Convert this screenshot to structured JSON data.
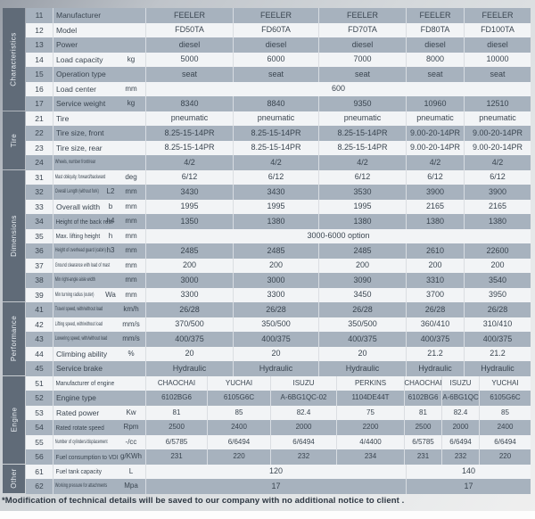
{
  "footer": {
    "note": "*Modification of technical details will be saved to our company with no additional notice to client ."
  },
  "colors": {
    "row_gray": "#a7b2be",
    "row_light": "#f2f4f6",
    "section_strip": "#606b78",
    "text": "#3a4550"
  },
  "table": {
    "models": [
      "FD50TA",
      "FD60TA",
      "FD70TA",
      "FD80TA",
      "FD100TA"
    ],
    "sections": [
      {
        "name": "Characteristics",
        "rows": [
          {
            "no": "11",
            "label": "Manufacturer",
            "sym": "",
            "unit": "",
            "type": "regular",
            "values": [
              "FEELER",
              "FEELER",
              "FEELER",
              "FEELER",
              "FEELER"
            ]
          },
          {
            "no": "12",
            "label": "Model",
            "sym": "",
            "unit": "",
            "type": "regular",
            "values": [
              "FD50TA",
              "FD60TA",
              "FD70TA",
              "FD80TA",
              "FD100TA"
            ]
          },
          {
            "no": "13",
            "label": "Power",
            "sym": "",
            "unit": "",
            "type": "regular",
            "values": [
              "diesel",
              "diesel",
              "diesel",
              "diesel",
              "diesel"
            ]
          },
          {
            "no": "14",
            "label": "Load capacity",
            "sym": "",
            "unit": "kg",
            "type": "regular",
            "values": [
              "5000",
              "6000",
              "7000",
              "8000",
              "10000"
            ]
          },
          {
            "no": "15",
            "label": "Operation type",
            "sym": "",
            "unit": "",
            "type": "regular",
            "values": [
              "seat",
              "seat",
              "seat",
              "seat",
              "seat"
            ]
          },
          {
            "no": "16",
            "label": "Load center",
            "sym": "",
            "unit": "mm",
            "type": "span",
            "values": [
              "600"
            ]
          },
          {
            "no": "17",
            "label": "Service weight",
            "sym": "",
            "unit": "kg",
            "type": "regular",
            "values": [
              "8340",
              "8840",
              "9350",
              "10960",
              "12510"
            ]
          }
        ]
      },
      {
        "name": "Tire",
        "rows": [
          {
            "no": "21",
            "label": "Tire",
            "sym": "",
            "unit": "",
            "type": "regular",
            "values": [
              "pneumatic",
              "pneumatic",
              "pneumatic",
              "pneumatic",
              "pneumatic"
            ]
          },
          {
            "no": "22",
            "label": "Tire size, front",
            "sym": "",
            "unit": "",
            "type": "regular",
            "values": [
              "8.25-15-14PR",
              "8.25-15-14PR",
              "8.25-15-14PR",
              "9.00-20-14PR",
              "9.00-20-14PR"
            ]
          },
          {
            "no": "23",
            "label": "Tire size, rear",
            "sym": "",
            "unit": "",
            "type": "regular",
            "values": [
              "8.25-15-14PR",
              "8.25-15-14PR",
              "8.25-15-14PR",
              "9.00-20-14PR",
              "9.00-20-14PR"
            ]
          },
          {
            "no": "24",
            "label": "Wheels, number front/rear",
            "sym": "",
            "unit": "",
            "type": "regular",
            "values": [
              "4/2",
              "4/2",
              "4/2",
              "4/2",
              "4/2"
            ]
          }
        ]
      },
      {
        "name": "Dimensions",
        "rows": [
          {
            "no": "31",
            "label": "Mast obliquity, forward/backward",
            "sym": "",
            "unit": "deg",
            "type": "regular",
            "values": [
              "6/12",
              "6/12",
              "6/12",
              "6/12",
              "6/12"
            ]
          },
          {
            "no": "32",
            "label": "Overall Length (without fork)",
            "sym": "L2",
            "unit": "mm",
            "type": "regular",
            "values": [
              "3430",
              "3430",
              "3530",
              "3900",
              "3900"
            ]
          },
          {
            "no": "33",
            "label": "Overall width",
            "sym": "b",
            "unit": "mm",
            "type": "regular",
            "values": [
              "1995",
              "1995",
              "1995",
              "2165",
              "2165"
            ]
          },
          {
            "no": "34",
            "label": "Height of the back rest",
            "sym": "h4",
            "unit": "mm",
            "type": "regular",
            "values": [
              "1350",
              "1380",
              "1380",
              "1380",
              "1380"
            ]
          },
          {
            "no": "35",
            "label": "Max. lifting height",
            "sym": "h",
            "unit": "mm",
            "type": "span",
            "values": [
              "3000-6000  option"
            ]
          },
          {
            "no": "36",
            "label": "Height of overhead guard (cabin)",
            "sym": "h3",
            "unit": "mm",
            "type": "regular",
            "values": [
              "2485",
              "2485",
              "2485",
              "2610",
              "22600"
            ]
          },
          {
            "no": "37",
            "label": "Ground clearance with load of mast",
            "sym": "",
            "unit": "mm",
            "type": "regular",
            "values": [
              "200",
              "200",
              "200",
              "200",
              "200"
            ]
          },
          {
            "no": "38",
            "label": "Min right-angle aisle width",
            "sym": "",
            "unit": "mm",
            "type": "regular",
            "values": [
              "3000",
              "3000",
              "3090",
              "3310",
              "3540"
            ]
          },
          {
            "no": "39",
            "label": "Min turning radius (outer)",
            "sym": "Wa",
            "unit": "mm",
            "type": "regular",
            "values": [
              "3300",
              "3300",
              "3450",
              "3700",
              "3950"
            ]
          }
        ]
      },
      {
        "name": "Performance",
        "rows": [
          {
            "no": "41",
            "label": "Travel speed, with/without load",
            "sym": "",
            "unit": "km/h",
            "type": "regular",
            "values": [
              "26/28",
              "26/28",
              "26/28",
              "26/28",
              "26/28"
            ]
          },
          {
            "no": "42",
            "label": "Lifting speed, with/without load",
            "sym": "",
            "unit": "mm/s",
            "type": "regular",
            "values": [
              "370/500",
              "350/500",
              "350/500",
              "360/410",
              "310/410"
            ]
          },
          {
            "no": "43",
            "label": "Lowering speed, with/without load",
            "sym": "",
            "unit": "mm/s",
            "type": "regular",
            "values": [
              "400/375",
              "400/375",
              "400/375",
              "400/375",
              "400/375"
            ]
          },
          {
            "no": "44",
            "label": "Climbing ability",
            "sym": "",
            "unit": "%",
            "type": "regular",
            "values": [
              "20",
              "20",
              "20",
              "21.2",
              "21.2"
            ]
          },
          {
            "no": "45",
            "label": "Service brake",
            "sym": "",
            "unit": "",
            "type": "regular",
            "values": [
              "Hydraulic",
              "Hydraulic",
              "Hydraulic",
              "Hydraulic",
              "Hydraulic"
            ]
          }
        ]
      },
      {
        "name": "Engine",
        "rows": [
          {
            "no": "51",
            "label": "Manufacturer of engine",
            "sym": "",
            "unit": "",
            "type": "engine",
            "values": [
              "CHAOCHAI",
              "YUCHAI",
              "ISUZU",
              "PERKINS",
              "CHAOCHAI",
              "ISUZU",
              "YUCHAI"
            ]
          },
          {
            "no": "52",
            "label": "Engine type",
            "sym": "",
            "unit": "",
            "type": "engine",
            "values": [
              "6102BG6",
              "6105G6C",
              "A-6BG1QC-02",
              "1104DE44T",
              "6102BG6",
              "A-6BG1QC",
              "6105G6C"
            ]
          },
          {
            "no": "53",
            "label": "Rated power",
            "sym": "",
            "unit": "Kw",
            "type": "engine",
            "values": [
              "81",
              "85",
              "82.4",
              "75",
              "81",
              "82.4",
              "85"
            ]
          },
          {
            "no": "54",
            "label": "Rated rotate speed",
            "sym": "",
            "unit": "Rpm",
            "type": "engine",
            "values": [
              "2500",
              "2400",
              "2000",
              "2200",
              "2500",
              "2000",
              "2400"
            ]
          },
          {
            "no": "55",
            "label": "Number of cylinders/displacement",
            "sym": "",
            "unit": "-/cc",
            "type": "engine",
            "values": [
              "6/5785",
              "6/6494",
              "6/6494",
              "4/4400",
              "6/5785",
              "6/6494",
              "6/6494"
            ]
          },
          {
            "no": "56",
            "label": "Fuel consumption to VDI",
            "sym": "",
            "unit": "g/KWh",
            "type": "engine",
            "values": [
              "231",
              "220",
              "232",
              "234",
              "231",
              "232",
              "220"
            ]
          }
        ]
      },
      {
        "name": "Other",
        "rows": [
          {
            "no": "61",
            "label": "Fuel tank capacity",
            "sym": "",
            "unit": "L",
            "type": "split",
            "values": [
              "120",
              "140"
            ]
          },
          {
            "no": "62",
            "label": "Working pressure for attachments",
            "sym": "",
            "unit": "Mpa",
            "type": "split",
            "values": [
              "17",
              "17"
            ]
          }
        ]
      }
    ]
  }
}
